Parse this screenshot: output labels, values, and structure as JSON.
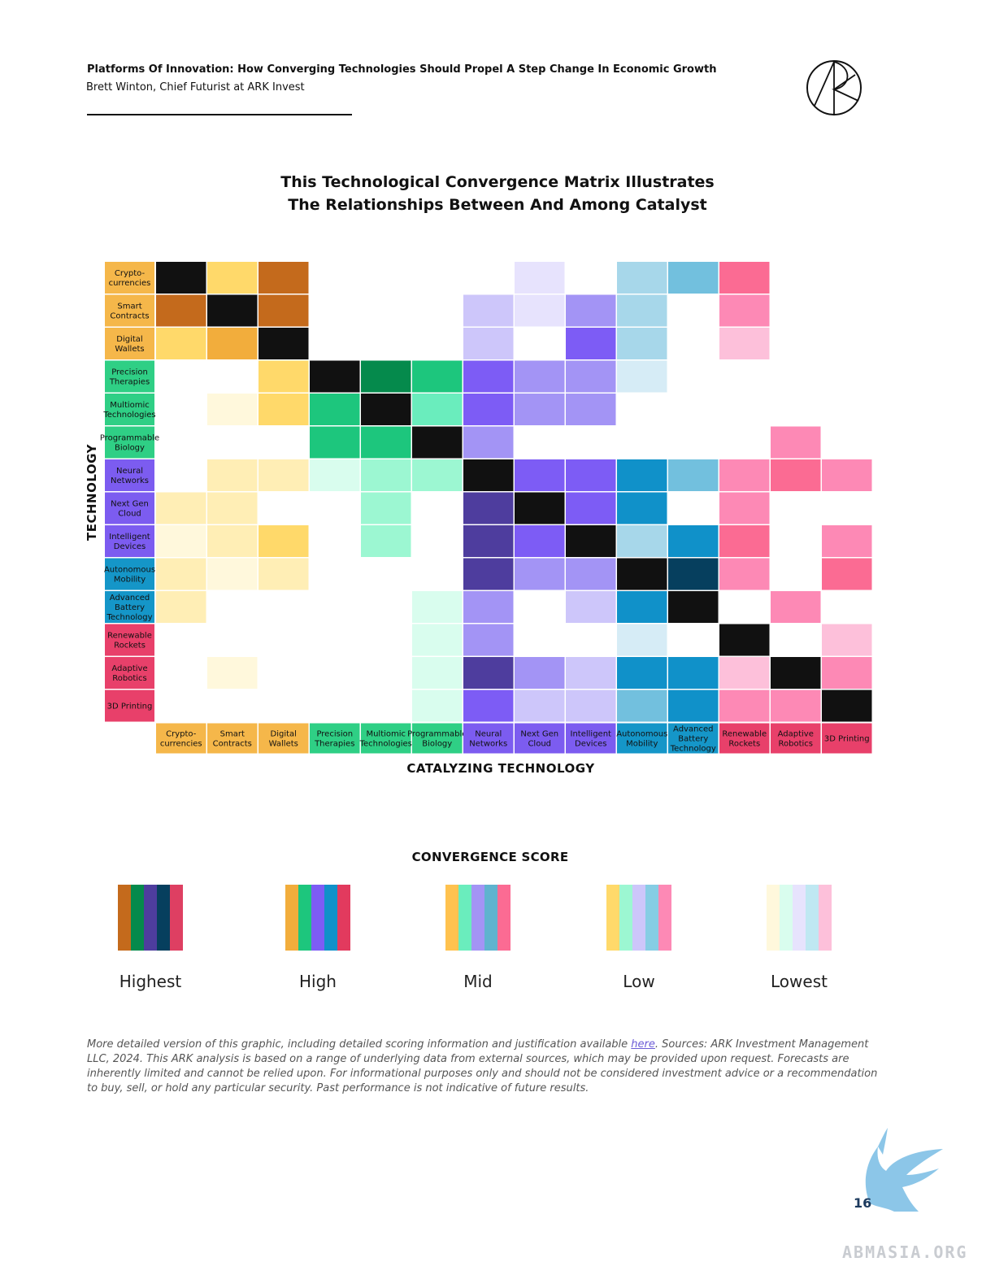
{
  "header": {
    "title": "Platforms Of Innovation: How Converging Technologies Should Propel A Step Change In Economic Growth",
    "author": "Brett Winton, Chief Futurist at ARK Invest"
  },
  "colors": {
    "tech_groups": {
      "crypto": "#f5b74a",
      "bio": "#2fcf85",
      "ai": "#7c5cf0",
      "auto": "#1596c8",
      "rockets": "#e8406a"
    },
    "levels": {
      "crypto": [
        "#c46a1c",
        "#f2ad3c",
        "#ffd96a",
        "#ffeeb5",
        "#fff8dc"
      ],
      "bio": [
        "#058a4c",
        "#1dc67d",
        "#6aedbd",
        "#9cf7d2",
        "#d9fdee"
      ],
      "ai": [
        "#4e3d9e",
        "#7d5cf5",
        "#a394f5",
        "#cdc6fa",
        "#e7e3fd"
      ],
      "auto": [
        "#063f5e",
        "#1091c9",
        "#72c0de",
        "#a7d7ea",
        "#d6ecf6"
      ],
      "rockets": [
        "#de3f62",
        "#fb6b93",
        "#fd89b5",
        "#fdc0da",
        "#fee3ee"
      ],
      "self": "#111111"
    }
  },
  "chart_data": {
    "type": "heatmap",
    "title": "This Technological Convergence Matrix Illustrates The Relationships Between And Among Catalyst",
    "title_lines": [
      "This Technological Convergence Matrix Illustrates",
      "The Relationships Between And Among Catalyst"
    ],
    "ylabel": "TECHNOLOGY",
    "xlabel": "CATALYZING TECHNOLOGY",
    "technologies": [
      {
        "label": "Crypto- currencies",
        "group": "crypto"
      },
      {
        "label": "Smart Contracts",
        "group": "crypto"
      },
      {
        "label": "Digital Wallets",
        "group": "crypto"
      },
      {
        "label": "Precision Therapies",
        "group": "bio"
      },
      {
        "label": "Multiomic Technologies",
        "group": "bio"
      },
      {
        "label": "Programmable Biology",
        "group": "bio"
      },
      {
        "label": "Neural Networks",
        "group": "ai"
      },
      {
        "label": "Next Gen Cloud",
        "group": "ai"
      },
      {
        "label": "Intelligent Devices",
        "group": "ai"
      },
      {
        "label": "Autonomous Mobility",
        "group": "auto"
      },
      {
        "label": "Advanced Battery Technology",
        "group": "auto"
      },
      {
        "label": "Renewable Rockets",
        "group": "rockets"
      },
      {
        "label": "Adaptive Robotics",
        "group": "rockets"
      },
      {
        "label": "3D Printing",
        "group": "rockets"
      }
    ],
    "score_scale": {
      "5": "Highest",
      "4": "High",
      "3": "Mid",
      "2": "Low",
      "1": "Lowest",
      "0": "None",
      "-1": "Self"
    },
    "matrix": [
      [
        -1,
        3,
        5,
        0,
        0,
        0,
        0,
        1,
        0,
        2,
        3,
        4,
        0,
        0
      ],
      [
        5,
        -1,
        5,
        0,
        0,
        0,
        2,
        1,
        3,
        2,
        0,
        3,
        0,
        0
      ],
      [
        3,
        4,
        -1,
        0,
        0,
        0,
        2,
        0,
        4,
        2,
        0,
        2,
        0,
        0
      ],
      [
        0,
        0,
        3,
        -1,
        5,
        4,
        4,
        3,
        3,
        1,
        0,
        0,
        0,
        0
      ],
      [
        0,
        1,
        3,
        4,
        -1,
        3,
        4,
        3,
        3,
        0,
        0,
        0,
        0,
        0
      ],
      [
        0,
        0,
        0,
        4,
        4,
        -1,
        3,
        0,
        0,
        0,
        0,
        0,
        3,
        0
      ],
      [
        0,
        2,
        2,
        1,
        2,
        2,
        -1,
        4,
        4,
        4,
        3,
        3,
        4,
        3
      ],
      [
        2,
        2,
        0,
        0,
        2,
        0,
        5,
        -1,
        4,
        4,
        0,
        3,
        0,
        0
      ],
      [
        1,
        2,
        3,
        0,
        2,
        0,
        5,
        4,
        -1,
        2,
        4,
        4,
        0,
        3
      ],
      [
        2,
        1,
        2,
        0,
        0,
        0,
        5,
        3,
        3,
        -1,
        5,
        3,
        0,
        4
      ],
      [
        2,
        0,
        0,
        0,
        0,
        1,
        3,
        0,
        2,
        4,
        -1,
        0,
        3,
        0
      ],
      [
        0,
        0,
        0,
        0,
        0,
        1,
        3,
        0,
        0,
        1,
        0,
        -1,
        0,
        2
      ],
      [
        0,
        1,
        0,
        0,
        0,
        1,
        5,
        3,
        2,
        4,
        4,
        2,
        -1,
        3
      ],
      [
        0,
        0,
        0,
        0,
        0,
        1,
        4,
        2,
        2,
        3,
        4,
        3,
        3,
        -1
      ]
    ]
  },
  "legend": {
    "title": "CONVERGENCE SCORE",
    "items": [
      {
        "label": "Highest",
        "colors": [
          "#c46a1c",
          "#058a4c",
          "#4e3d9e",
          "#063f5e",
          "#de3f62"
        ]
      },
      {
        "label": "High",
        "colors": [
          "#f2ad3c",
          "#1dc67d",
          "#7d5cf5",
          "#1091c9",
          "#e23a5e"
        ]
      },
      {
        "label": "Mid",
        "colors": [
          "#ffc24f",
          "#6aedbd",
          "#a394f5",
          "#5fb3cf",
          "#fb6b93"
        ]
      },
      {
        "label": "Low",
        "colors": [
          "#ffd96a",
          "#9cf7d2",
          "#cdc6fa",
          "#86cde4",
          "#fd89b5"
        ]
      },
      {
        "label": "Lowest",
        "colors": [
          "#fff8dc",
          "#d9fdee",
          "#e7e3fd",
          "#bfe8f2",
          "#fdc0da"
        ]
      }
    ]
  },
  "footnote": {
    "pre": "More detailed version of this graphic, including detailed scoring information and justification available ",
    "link": "here",
    "post": ". Sources: ARK Investment Management LLC, 2024. This ARK analysis is based on a range of underlying data from external sources, which may be provided upon request. Forecasts are inherently limited and cannot be relied upon. For informational purposes only and should not be considered investment advice or a recommendation to buy, sell, or hold any particular security. Past performance is not indicative of future results."
  },
  "page_number": "16",
  "watermark": {
    "text": "ABMASIA.ORG",
    "icon": "griffin-icon"
  },
  "logo": {
    "icon": "ark-logo-icon"
  }
}
